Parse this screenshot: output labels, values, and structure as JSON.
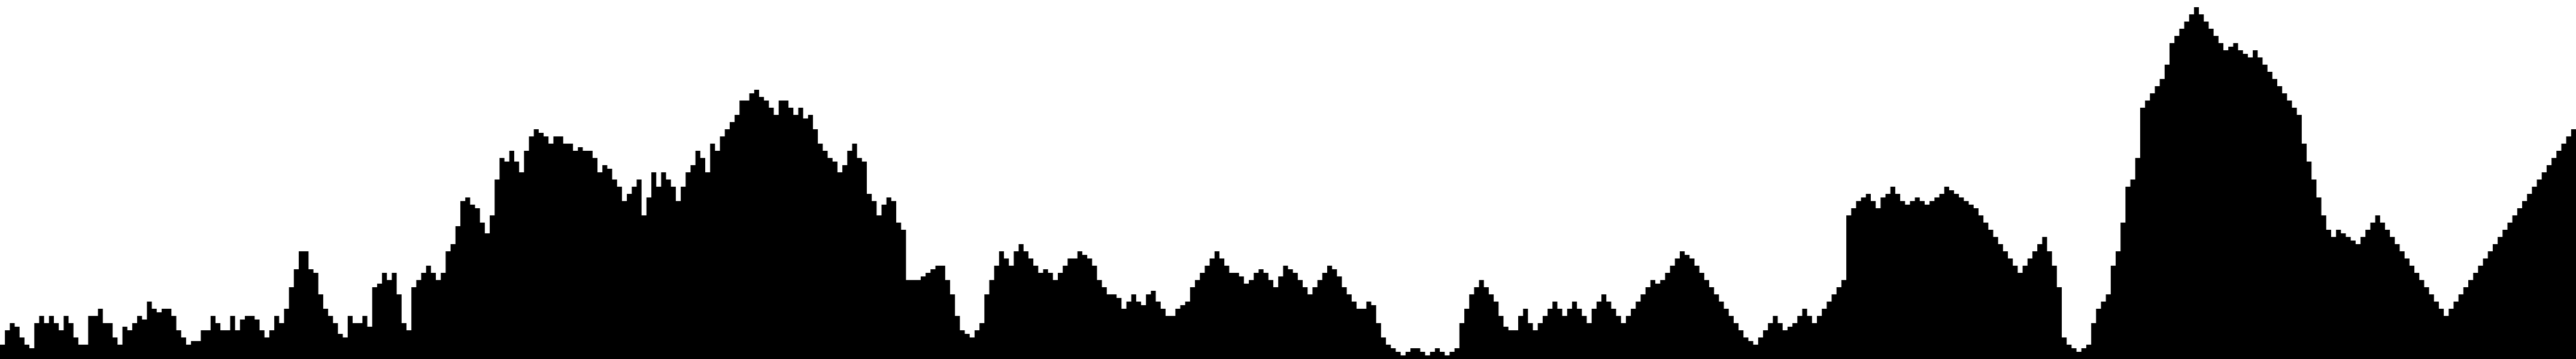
{
  "chart_data": {
    "type": "area",
    "title": "",
    "xlabel": "",
    "ylabel": "",
    "grid": false,
    "legend": "none",
    "ylim": [
      0,
      100
    ],
    "fill_color": "#000000",
    "background_color": "#ffffff",
    "series": [
      {
        "values": [
          4,
          8,
          10,
          9,
          6,
          4,
          3,
          10,
          12,
          10,
          12,
          10,
          8,
          12,
          10,
          6,
          4,
          4,
          12,
          12,
          14,
          10,
          10,
          6,
          4,
          9,
          8,
          10,
          12,
          11,
          16,
          14,
          13,
          14,
          14,
          12,
          8,
          6,
          4,
          5,
          5,
          8,
          8,
          12,
          10,
          8,
          8,
          12,
          8,
          11,
          12,
          12,
          11,
          8,
          6,
          8,
          12,
          10,
          14,
          20,
          25,
          30,
          30,
          25,
          24,
          18,
          14,
          12,
          10,
          7,
          6,
          12,
          10,
          10,
          12,
          9,
          20,
          21,
          24,
          22,
          24,
          18,
          10,
          8,
          20,
          22,
          24,
          26,
          24,
          22,
          24,
          30,
          32,
          37,
          44,
          45,
          43,
          42,
          38,
          35,
          40,
          50,
          56,
          55,
          58,
          55,
          52,
          58,
          62,
          64,
          63,
          62,
          60,
          62,
          62,
          60,
          60,
          58,
          59,
          58,
          58,
          56,
          52,
          54,
          53,
          50,
          48,
          44,
          46,
          48,
          50,
          40,
          45,
          52,
          48,
          52,
          50,
          48,
          44,
          48,
          52,
          54,
          58,
          56,
          52,
          60,
          58,
          62,
          64,
          66,
          68,
          72,
          72,
          74,
          75,
          73,
          72,
          70,
          68,
          72,
          72,
          70,
          68,
          70,
          67,
          68,
          64,
          60,
          58,
          56,
          55,
          52,
          54,
          58,
          60,
          56,
          55,
          46,
          44,
          40,
          43,
          45,
          44,
          38,
          36,
          22,
          22,
          22,
          23,
          24,
          25,
          26,
          26,
          22,
          18,
          12,
          8,
          7,
          6,
          8,
          10,
          18,
          22,
          26,
          30,
          28,
          26,
          30,
          32,
          30,
          28,
          26,
          24,
          25,
          24,
          22,
          24,
          26,
          28,
          28,
          30,
          29,
          28,
          26,
          22,
          20,
          18,
          18,
          17,
          14,
          16,
          18,
          16,
          15,
          18,
          19,
          16,
          14,
          12,
          12,
          14,
          15,
          16,
          20,
          22,
          24,
          26,
          28,
          30,
          28,
          26,
          24,
          24,
          23,
          21,
          22,
          24,
          25,
          24,
          22,
          20,
          23,
          26,
          25,
          24,
          22,
          20,
          18,
          20,
          22,
          24,
          26,
          25,
          23,
          20,
          18,
          16,
          14,
          14,
          16,
          15,
          10,
          6,
          4,
          3,
          2,
          1,
          2,
          3,
          3,
          2,
          1,
          2,
          3,
          2,
          1,
          2,
          3,
          10,
          14,
          18,
          20,
          22,
          20,
          18,
          16,
          12,
          9,
          8,
          8,
          12,
          14,
          10,
          8,
          10,
          12,
          14,
          16,
          14,
          12,
          14,
          16,
          14,
          12,
          10,
          14,
          16,
          18,
          16,
          14,
          12,
          10,
          12,
          14,
          16,
          18,
          20,
          22,
          21,
          22,
          24,
          26,
          28,
          30,
          29,
          28,
          26,
          24,
          22,
          20,
          18,
          16,
          14,
          12,
          10,
          8,
          6,
          5,
          4,
          6,
          8,
          10,
          12,
          10,
          8,
          9,
          10,
          12,
          14,
          12,
          10,
          12,
          14,
          16,
          18,
          20,
          22,
          40,
          42,
          44,
          45,
          46,
          44,
          42,
          45,
          46,
          48,
          46,
          44,
          43,
          44,
          45,
          44,
          43,
          44,
          45,
          46,
          48,
          47,
          46,
          45,
          44,
          43,
          42,
          40,
          38,
          36,
          34,
          32,
          30,
          28,
          26,
          24,
          26,
          28,
          30,
          32,
          34,
          30,
          26,
          20,
          6,
          4,
          3,
          2,
          3,
          4,
          10,
          14,
          16,
          18,
          26,
          30,
          38,
          48,
          50,
          56,
          70,
          72,
          74,
          76,
          78,
          82,
          88,
          90,
          92,
          94,
          96,
          98,
          96,
          94,
          92,
          90,
          88,
          86,
          87,
          88,
          86,
          85,
          84,
          86,
          84,
          82,
          80,
          78,
          76,
          74,
          72,
          70,
          68,
          60,
          55,
          50,
          45,
          40,
          36,
          34,
          36,
          35,
          34,
          33,
          32,
          34,
          36,
          38,
          40,
          38,
          36,
          34,
          32,
          30,
          28,
          26,
          24,
          22,
          20,
          18,
          16,
          14,
          12,
          14,
          16,
          18,
          20,
          22,
          24,
          26,
          28,
          30,
          32,
          34,
          36,
          38,
          40,
          42,
          44,
          46,
          48,
          50,
          52,
          54,
          56,
          58,
          60,
          62,
          64
        ]
      }
    ]
  }
}
